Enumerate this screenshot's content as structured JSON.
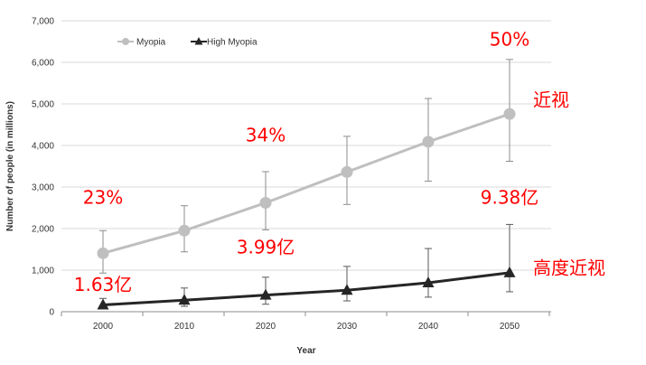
{
  "chart_data": {
    "type": "line",
    "x": [
      2000,
      2010,
      2020,
      2030,
      2040,
      2050
    ],
    "xlabel": "Year",
    "ylabel": "Number of people (in millions)",
    "ylim": [
      0,
      7000
    ],
    "yticks": [
      0,
      1000,
      2000,
      3000,
      4000,
      5000,
      6000,
      7000
    ],
    "ytick_labels": [
      "0",
      "1,000",
      "2,000",
      "3,000",
      "4,000",
      "5,000",
      "6,000",
      "7,000"
    ],
    "grid": "horizontal",
    "legend_placement": "top-left",
    "series": [
      {
        "name": "Myopia",
        "color": "#bfbfbf",
        "marker": "circle",
        "values": [
          1406,
          1950,
          2620,
          3361,
          4089,
          4758
        ],
        "error_low": [
          930,
          1440,
          1970,
          2580,
          3140,
          3620
        ],
        "error_high": [
          1950,
          2550,
          3370,
          4220,
          5130,
          6070
        ]
      },
      {
        "name": "High Myopia",
        "color": "#262626",
        "marker": "triangle",
        "values": [
          163,
          277,
          399,
          517,
          696,
          938
        ],
        "error_low": [
          80,
          130,
          180,
          260,
          350,
          480
        ],
        "error_high": [
          320,
          570,
          830,
          1090,
          1520,
          2100
        ]
      }
    ],
    "annotations": [
      {
        "text": "23%",
        "color": "#ff0000",
        "x": 2000,
        "y": 2600
      },
      {
        "text": "34%",
        "color": "#ff0000",
        "x": 2020,
        "y": 4100
      },
      {
        "text": "50%",
        "color": "#ff0000",
        "x": 2050,
        "y": 6400
      },
      {
        "text": "近视",
        "color": "#ff0000",
        "x": 2054,
        "y": 4950
      },
      {
        "text": "9.38亿",
        "color": "#ff0000",
        "x": 2050,
        "y": 2600
      },
      {
        "text": "3.99亿",
        "color": "#ff0000",
        "x": 2020,
        "y": 1400
      },
      {
        "text": "1.63亿",
        "color": "#ff0000",
        "x": 2000,
        "y": 500
      },
      {
        "text": "高度近视",
        "color": "#ff0000",
        "x": 2054,
        "y": 900
      }
    ]
  }
}
